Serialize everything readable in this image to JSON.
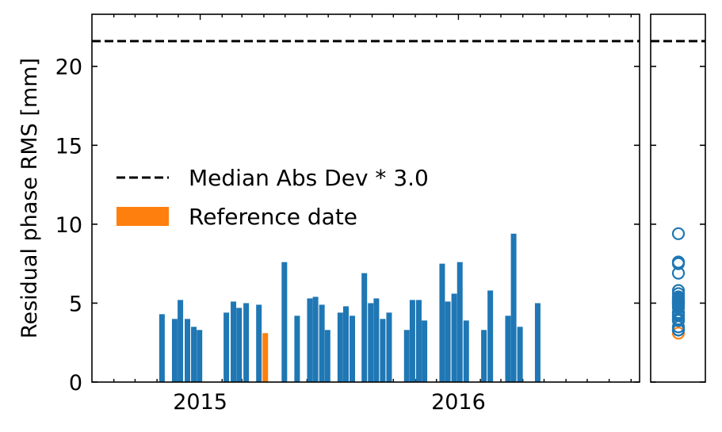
{
  "chart_data": {
    "type": "bar",
    "ylabel": "Residual phase RMS [mm]",
    "ylim": [
      0,
      23.3
    ],
    "yticks": [
      0,
      5,
      10,
      15,
      20
    ],
    "xlim": [
      "2014-08-01",
      "2016-09-13"
    ],
    "xticks": [
      {
        "date": "2015-01-01",
        "label": "2015"
      },
      {
        "date": "2016-01-01",
        "label": "2016"
      }
    ],
    "threshold": {
      "value": 21.6,
      "label": "Median Abs Dev * 3.0"
    },
    "reference_label": "Reference date",
    "colors": {
      "bar": "#1f77b4",
      "reference": "#ff7f0e",
      "threshold": "#000000"
    },
    "legend_position": "center-left",
    "bars": [
      {
        "date": "2014-11-08",
        "value": 4.3
      },
      {
        "date": "2014-11-26",
        "value": 4.0
      },
      {
        "date": "2014-12-04",
        "value": 5.2
      },
      {
        "date": "2014-12-14",
        "value": 4.0
      },
      {
        "date": "2014-12-23",
        "value": 3.5
      },
      {
        "date": "2014-12-31",
        "value": 3.3
      },
      {
        "date": "2015-02-07",
        "value": 4.4
      },
      {
        "date": "2015-02-17",
        "value": 5.1
      },
      {
        "date": "2015-02-25",
        "value": 4.7
      },
      {
        "date": "2015-03-07",
        "value": 5.0
      },
      {
        "date": "2015-03-25",
        "value": 4.9
      },
      {
        "date": "2015-04-03",
        "value": 3.1,
        "reference": true
      },
      {
        "date": "2015-04-30",
        "value": 7.6
      },
      {
        "date": "2015-05-18",
        "value": 4.2
      },
      {
        "date": "2015-06-05",
        "value": 5.3
      },
      {
        "date": "2015-06-13",
        "value": 5.4
      },
      {
        "date": "2015-06-22",
        "value": 4.9
      },
      {
        "date": "2015-06-30",
        "value": 3.3
      },
      {
        "date": "2015-07-18",
        "value": 4.4
      },
      {
        "date": "2015-07-26",
        "value": 4.8
      },
      {
        "date": "2015-08-04",
        "value": 4.2
      },
      {
        "date": "2015-08-21",
        "value": 6.9
      },
      {
        "date": "2015-08-30",
        "value": 5.0
      },
      {
        "date": "2015-09-07",
        "value": 5.3
      },
      {
        "date": "2015-09-16",
        "value": 4.0
      },
      {
        "date": "2015-09-25",
        "value": 4.4
      },
      {
        "date": "2015-10-20",
        "value": 3.3
      },
      {
        "date": "2015-10-28",
        "value": 5.2
      },
      {
        "date": "2015-11-06",
        "value": 5.2
      },
      {
        "date": "2015-11-14",
        "value": 3.9
      },
      {
        "date": "2015-12-09",
        "value": 7.5
      },
      {
        "date": "2015-12-17",
        "value": 5.1
      },
      {
        "date": "2015-12-26",
        "value": 5.6
      },
      {
        "date": "2016-01-03",
        "value": 7.6
      },
      {
        "date": "2016-01-12",
        "value": 3.9
      },
      {
        "date": "2016-02-06",
        "value": 3.3
      },
      {
        "date": "2016-02-15",
        "value": 5.8
      },
      {
        "date": "2016-03-11",
        "value": 4.2
      },
      {
        "date": "2016-03-19",
        "value": 9.4
      },
      {
        "date": "2016-03-28",
        "value": 3.5
      },
      {
        "date": "2016-04-22",
        "value": 5.0
      }
    ]
  }
}
